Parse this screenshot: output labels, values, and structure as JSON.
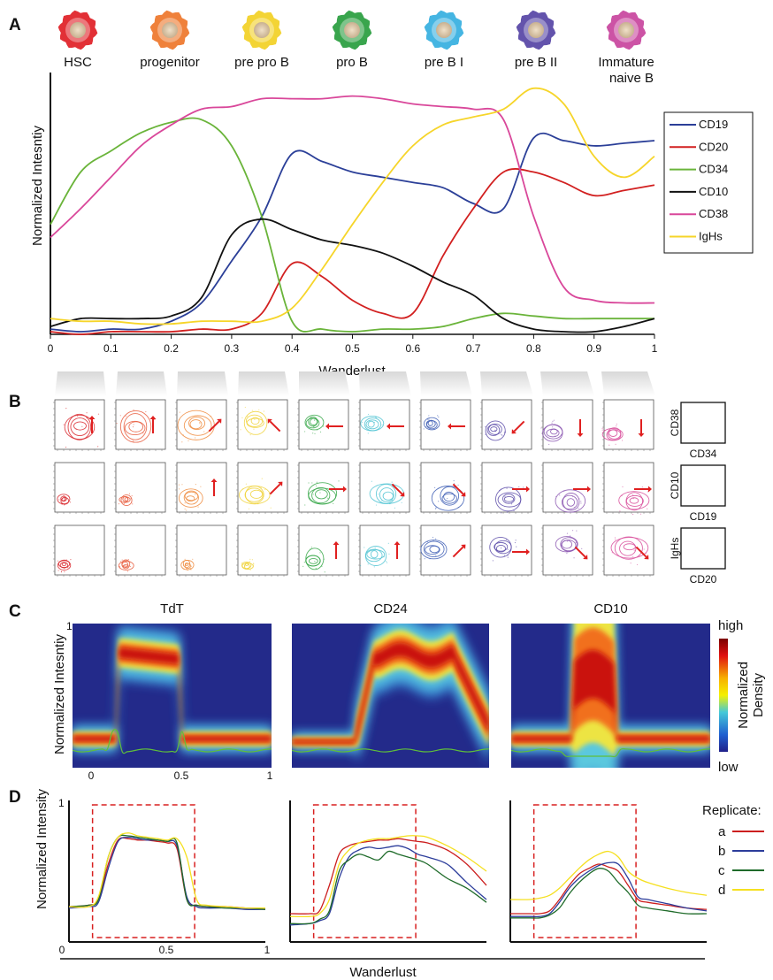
{
  "panels": {
    "a": "A",
    "b": "B",
    "c": "C",
    "d": "D"
  },
  "stages": [
    {
      "label": "HSC",
      "color": "#e0252b"
    },
    {
      "label": "progenitor",
      "color": "#ee7a30"
    },
    {
      "label": "pre pro B",
      "color": "#f2d22a"
    },
    {
      "label": "pro B",
      "color": "#2ea043"
    },
    {
      "label": "pre B I",
      "color": "#3bb1e0"
    },
    {
      "label": "pre B II",
      "color": "#5b4aa8"
    },
    {
      "label": "Immature",
      "label2": "naive B",
      "color": "#c94aa0"
    }
  ],
  "panel_b": {
    "rows": [
      {
        "y_marker": "CD38",
        "x_marker": "CD34",
        "arrows": [
          "up",
          "up",
          "up-right",
          "up-left",
          "left",
          "left",
          "left",
          "down-left",
          "down",
          "down"
        ]
      },
      {
        "y_marker": "CD10",
        "x_marker": "CD19",
        "arrows": [
          "none",
          "none",
          "up",
          "up-right",
          "right",
          "down-right",
          "down-right",
          "right",
          "right",
          "right"
        ]
      },
      {
        "y_marker": "IgHs",
        "x_marker": "CD20",
        "arrows": [
          "none",
          "none",
          "none",
          "none",
          "up",
          "up",
          "up-right",
          "right",
          "down-right",
          "down-right"
        ]
      }
    ],
    "cell_colors": [
      "#d9262b",
      "#e8593a",
      "#ef8a3c",
      "#f0d23a",
      "#38a84a",
      "#4ec3d2",
      "#3f5fb5",
      "#5a4aa8",
      "#8a55b0",
      "#d84b9a"
    ]
  },
  "panel_c": {
    "titles": [
      "TdT",
      "CD24",
      "CD10"
    ],
    "ylabel": "Normalized Intesntiy",
    "x_ticks": [
      "0",
      "0.5",
      "1"
    ],
    "y_tick": "1",
    "colorbar": {
      "high": "high",
      "low": "low",
      "label1": "Normalized",
      "label2": "Density"
    }
  },
  "panel_d": {
    "ylabel": "Normalized Intensity",
    "y_tick": "1",
    "x_ticks": [
      "0",
      "0.5",
      "1"
    ],
    "xlabel": "Wanderlust",
    "legend_title": "Replicate:",
    "replicates": [
      {
        "name": "a",
        "color": "#cc1f1f"
      },
      {
        "name": "b",
        "color": "#2c3d9b"
      },
      {
        "name": "c",
        "color": "#1f6b2a"
      },
      {
        "name": "d",
        "color": "#f5e020"
      }
    ]
  },
  "chart_data": [
    {
      "panel": "A",
      "type": "line",
      "title": "",
      "xlabel": "Wanderlust",
      "ylabel": "Normalized Intesntiy",
      "xlim": [
        0,
        1
      ],
      "ylim": [
        0,
        1
      ],
      "x_ticks": [
        "0",
        "0.1",
        "0.2",
        "0.3",
        "0.4",
        "0.5",
        "0.6",
        "0.7",
        "0.8",
        "0.9",
        "1"
      ],
      "legend_position": "right",
      "x": [
        0,
        0.05,
        0.1,
        0.15,
        0.2,
        0.25,
        0.3,
        0.35,
        0.4,
        0.45,
        0.5,
        0.55,
        0.6,
        0.65,
        0.7,
        0.75,
        0.8,
        0.85,
        0.9,
        0.95,
        1.0
      ],
      "series": [
        {
          "name": "CD19",
          "color": "#2b3f98",
          "values": [
            0.02,
            0.01,
            0.02,
            0.02,
            0.05,
            0.12,
            0.28,
            0.45,
            0.69,
            0.66,
            0.62,
            0.6,
            0.58,
            0.56,
            0.5,
            0.48,
            0.75,
            0.74,
            0.72,
            0.73,
            0.74
          ]
        },
        {
          "name": "CD20",
          "color": "#d22020",
          "values": [
            0.01,
            0.0,
            0.01,
            0.01,
            0.01,
            0.02,
            0.02,
            0.08,
            0.27,
            0.22,
            0.13,
            0.08,
            0.08,
            0.3,
            0.48,
            0.62,
            0.62,
            0.58,
            0.53,
            0.55,
            0.57
          ]
        },
        {
          "name": "CD34",
          "color": "#6ab43a",
          "values": [
            0.42,
            0.62,
            0.7,
            0.77,
            0.81,
            0.82,
            0.72,
            0.45,
            0.05,
            0.02,
            0.01,
            0.02,
            0.02,
            0.03,
            0.06,
            0.08,
            0.07,
            0.06,
            0.06,
            0.06,
            0.06
          ]
        },
        {
          "name": "CD10",
          "color": "#111111",
          "values": [
            0.03,
            0.06,
            0.06,
            0.06,
            0.07,
            0.14,
            0.38,
            0.44,
            0.4,
            0.36,
            0.34,
            0.31,
            0.26,
            0.2,
            0.15,
            0.06,
            0.02,
            0.01,
            0.01,
            0.03,
            0.06
          ]
        },
        {
          "name": "CD38",
          "color": "#d9479a",
          "values": [
            0.37,
            0.48,
            0.6,
            0.72,
            0.8,
            0.86,
            0.87,
            0.9,
            0.9,
            0.9,
            0.91,
            0.9,
            0.88,
            0.87,
            0.86,
            0.82,
            0.45,
            0.18,
            0.13,
            0.12,
            0.12
          ]
        },
        {
          "name": "IgHs",
          "color": "#f6d52a",
          "values": [
            0.06,
            0.05,
            0.05,
            0.04,
            0.04,
            0.05,
            0.05,
            0.05,
            0.1,
            0.25,
            0.42,
            0.58,
            0.72,
            0.8,
            0.83,
            0.86,
            0.94,
            0.88,
            0.68,
            0.6,
            0.68
          ]
        }
      ]
    },
    {
      "panel": "D",
      "type": "line",
      "subplots": [
        {
          "x": [
            0,
            0.1,
            0.15,
            0.2,
            0.25,
            0.3,
            0.35,
            0.4,
            0.45,
            0.5,
            0.55,
            0.6,
            0.65,
            0.7,
            0.8,
            0.9,
            1.0
          ],
          "series": [
            {
              "name": "a",
              "values": [
                0.25,
                0.26,
                0.3,
                0.55,
                0.72,
                0.73,
                0.72,
                0.72,
                0.71,
                0.7,
                0.66,
                0.3,
                0.26,
                0.25,
                0.25,
                0.24,
                0.24
              ]
            },
            {
              "name": "b",
              "values": [
                0.24,
                0.25,
                0.28,
                0.52,
                0.71,
                0.74,
                0.73,
                0.72,
                0.72,
                0.71,
                0.68,
                0.32,
                0.25,
                0.24,
                0.24,
                0.23,
                0.23
              ]
            },
            {
              "name": "c",
              "values": [
                0.25,
                0.26,
                0.3,
                0.6,
                0.74,
                0.75,
                0.74,
                0.73,
                0.72,
                0.71,
                0.7,
                0.3,
                0.26,
                0.25,
                0.24,
                0.24,
                0.23
              ]
            },
            {
              "name": "d",
              "values": [
                0.25,
                0.25,
                0.32,
                0.6,
                0.74,
                0.77,
                0.75,
                0.74,
                0.73,
                0.72,
                0.73,
                0.6,
                0.3,
                0.26,
                0.25,
                0.24,
                0.24
              ]
            }
          ]
        },
        {
          "x": [
            0,
            0.1,
            0.15,
            0.2,
            0.25,
            0.3,
            0.35,
            0.4,
            0.45,
            0.5,
            0.55,
            0.6,
            0.65,
            0.7,
            0.8,
            0.9,
            1.0
          ],
          "series": [
            {
              "name": "a",
              "values": [
                0.2,
                0.2,
                0.22,
                0.4,
                0.62,
                0.68,
                0.7,
                0.71,
                0.72,
                0.72,
                0.73,
                0.72,
                0.71,
                0.7,
                0.65,
                0.55,
                0.4
              ]
            },
            {
              "name": "b",
              "values": [
                0.12,
                0.13,
                0.15,
                0.2,
                0.45,
                0.6,
                0.65,
                0.67,
                0.66,
                0.67,
                0.68,
                0.66,
                0.62,
                0.6,
                0.55,
                0.42,
                0.3
              ]
            },
            {
              "name": "c",
              "values": [
                0.13,
                0.13,
                0.16,
                0.22,
                0.5,
                0.58,
                0.62,
                0.6,
                0.58,
                0.64,
                0.62,
                0.6,
                0.58,
                0.55,
                0.45,
                0.38,
                0.28
              ]
            },
            {
              "name": "d",
              "values": [
                0.18,
                0.18,
                0.2,
                0.3,
                0.55,
                0.65,
                0.7,
                0.72,
                0.73,
                0.73,
                0.74,
                0.75,
                0.75,
                0.74,
                0.68,
                0.6,
                0.5
              ]
            }
          ]
        },
        {
          "x": [
            0,
            0.1,
            0.15,
            0.2,
            0.25,
            0.3,
            0.35,
            0.4,
            0.45,
            0.5,
            0.55,
            0.6,
            0.65,
            0.7,
            0.8,
            0.9,
            1.0
          ],
          "series": [
            {
              "name": "a",
              "values": [
                0.2,
                0.2,
                0.2,
                0.22,
                0.3,
                0.4,
                0.48,
                0.52,
                0.55,
                0.53,
                0.5,
                0.4,
                0.3,
                0.28,
                0.26,
                0.24,
                0.23
              ]
            },
            {
              "name": "b",
              "values": [
                0.18,
                0.18,
                0.18,
                0.2,
                0.28,
                0.38,
                0.45,
                0.5,
                0.54,
                0.56,
                0.55,
                0.45,
                0.32,
                0.3,
                0.27,
                0.24,
                0.22
              ]
            },
            {
              "name": "c",
              "values": [
                0.17,
                0.17,
                0.17,
                0.19,
                0.24,
                0.34,
                0.42,
                0.48,
                0.52,
                0.5,
                0.42,
                0.35,
                0.26,
                0.24,
                0.22,
                0.2,
                0.2
              ]
            },
            {
              "name": "d",
              "values": [
                0.3,
                0.3,
                0.31,
                0.33,
                0.38,
                0.45,
                0.52,
                0.58,
                0.62,
                0.64,
                0.6,
                0.5,
                0.45,
                0.42,
                0.38,
                0.35,
                0.33
              ]
            }
          ]
        }
      ]
    }
  ]
}
